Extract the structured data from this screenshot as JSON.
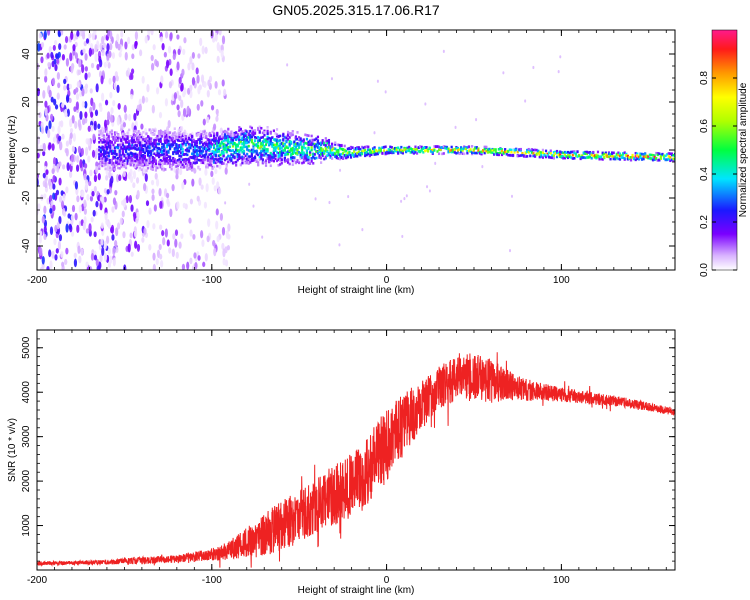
{
  "figure_title": "GN05.2025.315.17.06.R17",
  "chart_data": [
    {
      "type": "heatmap",
      "title": "GN05.2025.315.17.06.R17",
      "xlabel": "Height of straight line (km)",
      "ylabel": "Frequency (Hz)",
      "xlim": [
        -200,
        165
      ],
      "ylim": [
        -50,
        50
      ],
      "x_ticks": [
        -200,
        -100,
        0,
        100
      ],
      "x_tick_labels": [
        "-200",
        "-100",
        "0",
        "100"
      ],
      "y_ticks": [
        -40,
        -20,
        0,
        20,
        40
      ],
      "y_tick_labels": [
        "-40",
        "-20",
        "0",
        "20",
        "40"
      ],
      "colorbar": {
        "label": "Normalized spectral amplitude",
        "range": [
          0,
          1
        ],
        "ticks": [
          0.0,
          0.2,
          0.4,
          0.6,
          0.8
        ],
        "tick_labels": [
          "0.0",
          "0.2",
          "0.4",
          "0.6",
          "0.8"
        ],
        "colormap": "rainbow"
      },
      "ridge": [
        {
          "x": -160,
          "freq": 0,
          "width": 10,
          "amp": 0.45
        },
        {
          "x": -130,
          "freq": 0,
          "width": 10,
          "amp": 0.5
        },
        {
          "x": -100,
          "freq": 0,
          "width": 9,
          "amp": 0.55
        },
        {
          "x": -80,
          "freq": 2,
          "width": 9,
          "amp": 0.6
        },
        {
          "x": -60,
          "freq": 1,
          "width": 8,
          "amp": 0.6
        },
        {
          "x": -40,
          "freq": 0,
          "width": 6,
          "amp": 0.65
        },
        {
          "x": -20,
          "freq": -1,
          "width": 3,
          "amp": 0.7
        },
        {
          "x": 0,
          "freq": 0,
          "width": 2,
          "amp": 0.8
        },
        {
          "x": 50,
          "freq": 0,
          "width": 2,
          "amp": 0.85
        },
        {
          "x": 100,
          "freq": -2,
          "width": 2,
          "amp": 0.9
        },
        {
          "x": 165,
          "freq": -3,
          "width": 2,
          "amp": 0.95
        }
      ],
      "noise_region": {
        "x_from": -200,
        "x_to": -100,
        "freq_from": -50,
        "freq_to": 50
      }
    },
    {
      "type": "line",
      "xlabel": "Height of straight line (km)",
      "ylabel": "SNR (10 * v/v)",
      "xlim": [
        -200,
        165
      ],
      "ylim": [
        0,
        5400
      ],
      "x_ticks": [
        -200,
        -100,
        0,
        100
      ],
      "x_tick_labels": [
        "-200",
        "-100",
        "0",
        "100"
      ],
      "y_ticks": [
        1000,
        2000,
        3000,
        4000,
        5000
      ],
      "y_tick_labels": [
        "1000",
        "2000",
        "3000",
        "4000",
        "5000"
      ],
      "series": [
        {
          "name": "SNR",
          "color": "#ee2222",
          "x": [
            -200,
            -180,
            -160,
            -140,
            -120,
            -100,
            -90,
            -80,
            -70,
            -60,
            -50,
            -40,
            -30,
            -20,
            -10,
            0,
            10,
            20,
            30,
            40,
            50,
            60,
            70,
            80,
            90,
            100,
            120,
            140,
            165
          ],
          "mean": [
            150,
            160,
            180,
            210,
            250,
            350,
            450,
            600,
            800,
            1000,
            1200,
            1450,
            1700,
            1900,
            2300,
            2800,
            3300,
            3700,
            4100,
            4300,
            4350,
            4250,
            4150,
            4050,
            4000,
            3950,
            3850,
            3750,
            3550
          ],
          "spread": [
            80,
            80,
            100,
            150,
            150,
            250,
            400,
            650,
            900,
            1000,
            1100,
            1100,
            1300,
            1300,
            1400,
            1500,
            1300,
            1000,
            900,
            900,
            1000,
            900,
            600,
            450,
            350,
            300,
            250,
            200,
            150
          ]
        }
      ]
    }
  ]
}
